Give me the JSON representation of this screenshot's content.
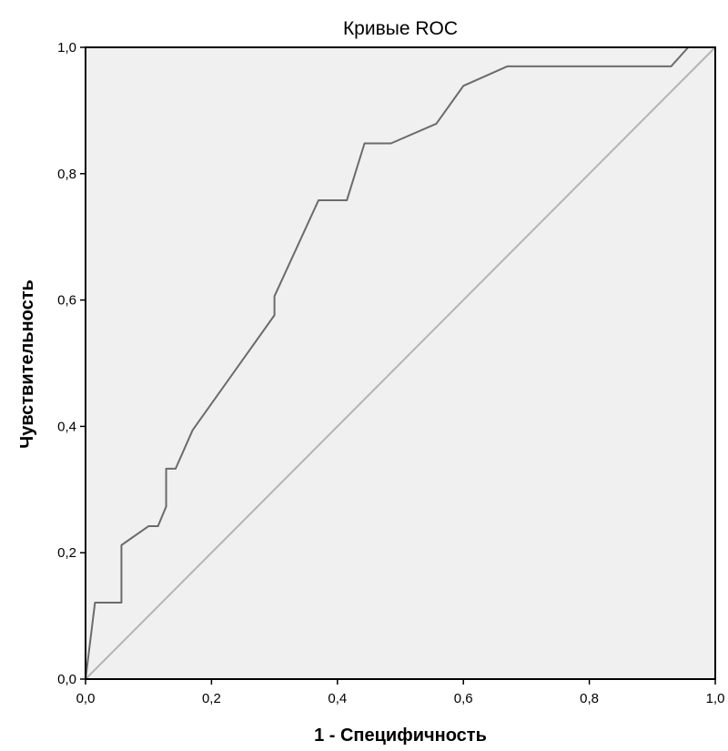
{
  "chart_data": {
    "type": "line",
    "title": "Кривые ROC",
    "xlabel": "1 - Специфичность",
    "ylabel": "Чувствительность",
    "xlim": [
      0,
      1
    ],
    "ylim": [
      0,
      1
    ],
    "x_ticks": [
      0,
      0.2,
      0.4,
      0.6,
      0.8,
      1.0
    ],
    "y_ticks": [
      0,
      0.2,
      0.4,
      0.6,
      0.8,
      1.0
    ],
    "x_tick_labels": [
      "0,0",
      "0,2",
      "0,4",
      "0,6",
      "0,8",
      "1,0"
    ],
    "y_tick_labels": [
      "0,0",
      "0,2",
      "0,4",
      "0,6",
      "0,8",
      "1,0"
    ],
    "grid": false,
    "legend": "none",
    "colors": {
      "plot_background": "#f0f0f0",
      "roc_curve": "#6b6b6b",
      "reference_line": "#b4b4b4",
      "frame": "#000000"
    },
    "series": [
      {
        "x": [
          0,
          0.015,
          0.057,
          0.057,
          0.1,
          0.115,
          0.128,
          0.128,
          0.143,
          0.17,
          0.3,
          0.3,
          0.37,
          0.415,
          0.443,
          0.485,
          0.557,
          0.6,
          0.67,
          0.93,
          0.957,
          1.0
        ],
        "y": [
          0,
          0.121,
          0.121,
          0.212,
          0.242,
          0.242,
          0.273,
          0.333,
          0.333,
          0.394,
          0.576,
          0.606,
          0.758,
          0.758,
          0.848,
          0.848,
          0.879,
          0.939,
          0.97,
          0.97,
          1.0,
          1.0
        ]
      },
      {
        "x": [
          0,
          1
        ],
        "y": [
          0,
          1
        ]
      }
    ]
  }
}
